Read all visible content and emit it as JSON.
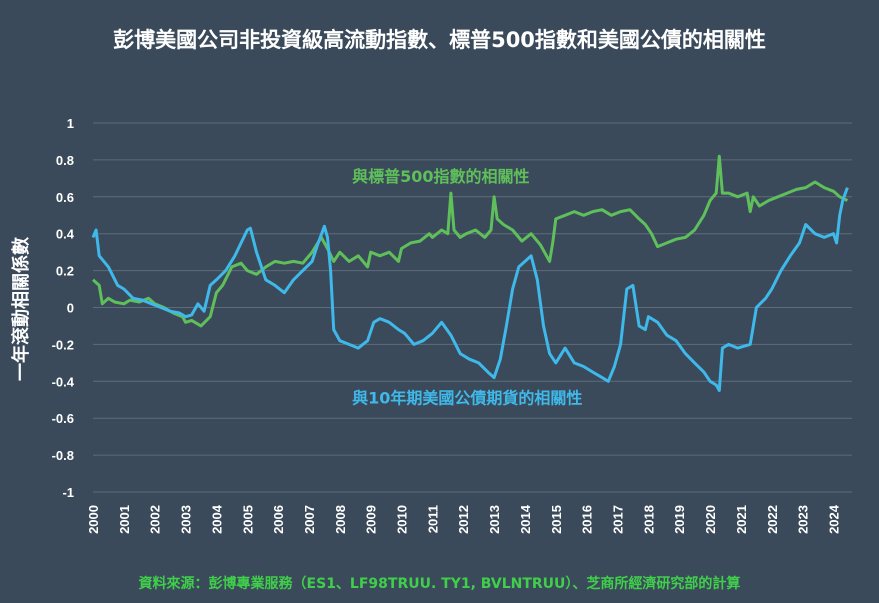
{
  "title": "彭博美國公司非投資級高流動指數、標普500指數和美國公債的相關性",
  "source": "資料來源：彭博專業服務（ES1、LF98TRUU. TY1, BVLNTRUU）、芝商所經濟研究部的計算",
  "colors": {
    "background": "#3a4a5a",
    "grid": "#5e6c7a",
    "green": "#5fbf5a",
    "blue": "#3fb8ea",
    "source": "#3fcf4a"
  },
  "chart_data": {
    "type": "line",
    "title": "彭博美國公司非投資級高流動指數、標普500指數和美國公債的相關性",
    "ylabel": "一年滾動相關係數",
    "xlabel": "",
    "ylim": [
      -1,
      1
    ],
    "yticks": [
      1,
      0.8,
      0.6,
      0.4,
      0.2,
      0,
      -0.2,
      -0.4,
      -0.6,
      -0.8,
      -1
    ],
    "ytick_labels": [
      "1",
      "0.8",
      "0.6",
      "0.4",
      "0.2",
      "0",
      "-0.2",
      "-0.4",
      "-0.6",
      "-0.8",
      "-1"
    ],
    "xlim": [
      2000,
      2024.6
    ],
    "xticks": [
      2000,
      2001,
      2002,
      2003,
      2004,
      2005,
      2006,
      2007,
      2008,
      2009,
      2010,
      2011,
      2012,
      2013,
      2014,
      2015,
      2016,
      2017,
      2018,
      2019,
      2020,
      2021,
      2022,
      2023,
      2024
    ],
    "xtick_labels": [
      "2000",
      "2001",
      "2002",
      "2003",
      "2004",
      "2005",
      "2006",
      "2007",
      "2008",
      "2009",
      "2010",
      "2011",
      "2012",
      "2013",
      "2014",
      "2015",
      "2016",
      "2017",
      "2018",
      "2019",
      "2020",
      "2021",
      "2022",
      "2023",
      "2024"
    ],
    "grid": true,
    "series": [
      {
        "name": "與標普500指數的相關性",
        "color": "#5fbf5a",
        "x": [
          2000.0,
          2000.2,
          2000.3,
          2000.5,
          2000.7,
          2001.0,
          2001.2,
          2001.5,
          2001.8,
          2002.0,
          2002.3,
          2002.6,
          2002.9,
          2003.0,
          2003.2,
          2003.5,
          2003.8,
          2004.0,
          2004.2,
          2004.5,
          2004.8,
          2005.0,
          2005.3,
          2005.6,
          2005.9,
          2006.2,
          2006.5,
          2006.8,
          2007.1,
          2007.4,
          2007.6,
          2007.8,
          2008.0,
          2008.3,
          2008.6,
          2008.9,
          2009.0,
          2009.3,
          2009.6,
          2009.9,
          2010.0,
          2010.3,
          2010.6,
          2010.9,
          2011.0,
          2011.3,
          2011.5,
          2011.6,
          2011.7,
          2011.9,
          2012.1,
          2012.4,
          2012.7,
          2012.9,
          2013.0,
          2013.1,
          2013.3,
          2013.6,
          2013.9,
          2014.2,
          2014.5,
          2014.7,
          2014.8,
          2014.9,
          2015.0,
          2015.3,
          2015.6,
          2015.9,
          2016.2,
          2016.5,
          2016.8,
          2017.1,
          2017.4,
          2017.7,
          2017.9,
          2018.1,
          2018.3,
          2018.6,
          2018.9,
          2019.2,
          2019.5,
          2019.8,
          2020.0,
          2020.2,
          2020.3,
          2020.4,
          2020.6,
          2020.9,
          2021.2,
          2021.3,
          2021.4,
          2021.6,
          2021.9,
          2022.2,
          2022.5,
          2022.8,
          2023.1,
          2023.4,
          2023.7,
          2024.0,
          2024.2,
          2024.45
        ],
        "values": [
          0.15,
          0.12,
          0.02,
          0.05,
          0.03,
          0.02,
          0.04,
          0.03,
          0.05,
          0.02,
          0.0,
          -0.03,
          -0.05,
          -0.08,
          -0.07,
          -0.1,
          -0.05,
          0.08,
          0.12,
          0.22,
          0.24,
          0.2,
          0.18,
          0.22,
          0.25,
          0.24,
          0.25,
          0.24,
          0.3,
          0.38,
          0.32,
          0.25,
          0.3,
          0.25,
          0.28,
          0.22,
          0.3,
          0.28,
          0.3,
          0.25,
          0.32,
          0.35,
          0.36,
          0.4,
          0.38,
          0.42,
          0.4,
          0.62,
          0.42,
          0.38,
          0.4,
          0.42,
          0.38,
          0.42,
          0.6,
          0.48,
          0.45,
          0.42,
          0.36,
          0.4,
          0.34,
          0.28,
          0.25,
          0.35,
          0.48,
          0.5,
          0.52,
          0.5,
          0.52,
          0.53,
          0.5,
          0.52,
          0.53,
          0.48,
          0.45,
          0.4,
          0.33,
          0.35,
          0.37,
          0.38,
          0.42,
          0.5,
          0.58,
          0.62,
          0.82,
          0.62,
          0.62,
          0.6,
          0.62,
          0.52,
          0.6,
          0.55,
          0.58,
          0.6,
          0.62,
          0.64,
          0.65,
          0.68,
          0.65,
          0.63,
          0.6,
          0.58
        ]
      },
      {
        "name": "與10年期美國公債期貨的相關性",
        "color": "#3fb8ea",
        "x": [
          2000.0,
          2000.1,
          2000.2,
          2000.5,
          2000.8,
          2001.0,
          2001.3,
          2001.6,
          2001.9,
          2002.2,
          2002.5,
          2002.8,
          2003.0,
          2003.2,
          2003.4,
          2003.6,
          2003.8,
          2004.0,
          2004.3,
          2004.6,
          2004.8,
          2005.0,
          2005.1,
          2005.3,
          2005.6,
          2005.9,
          2006.2,
          2006.5,
          2006.8,
          2007.1,
          2007.3,
          2007.5,
          2007.6,
          2007.7,
          2007.8,
          2008.0,
          2008.3,
          2008.6,
          2008.9,
          2009.1,
          2009.3,
          2009.6,
          2009.9,
          2010.1,
          2010.4,
          2010.7,
          2011.0,
          2011.3,
          2011.6,
          2011.9,
          2012.2,
          2012.5,
          2012.8,
          2013.0,
          2013.2,
          2013.4,
          2013.6,
          2013.8,
          2014.0,
          2014.2,
          2014.4,
          2014.6,
          2014.8,
          2015.0,
          2015.3,
          2015.6,
          2015.9,
          2016.2,
          2016.5,
          2016.7,
          2016.9,
          2017.1,
          2017.3,
          2017.5,
          2017.7,
          2017.9,
          2018.0,
          2018.3,
          2018.6,
          2018.9,
          2019.2,
          2019.5,
          2019.8,
          2020.0,
          2020.2,
          2020.3,
          2020.4,
          2020.6,
          2020.9,
          2021.1,
          2021.3,
          2021.5,
          2021.8,
          2022.0,
          2022.3,
          2022.6,
          2022.9,
          2023.1,
          2023.4,
          2023.7,
          2024.0,
          2024.1,
          2024.2,
          2024.3,
          2024.45
        ],
        "values": [
          0.38,
          0.42,
          0.28,
          0.22,
          0.12,
          0.1,
          0.05,
          0.04,
          0.02,
          0.0,
          -0.02,
          -0.03,
          -0.05,
          -0.04,
          0.02,
          -0.02,
          0.12,
          0.15,
          0.2,
          0.28,
          0.35,
          0.42,
          0.43,
          0.3,
          0.15,
          0.12,
          0.08,
          0.15,
          0.2,
          0.25,
          0.35,
          0.44,
          0.38,
          0.2,
          -0.12,
          -0.18,
          -0.2,
          -0.22,
          -0.18,
          -0.08,
          -0.06,
          -0.08,
          -0.12,
          -0.14,
          -0.2,
          -0.18,
          -0.14,
          -0.08,
          -0.15,
          -0.25,
          -0.28,
          -0.3,
          -0.35,
          -0.38,
          -0.28,
          -0.1,
          0.1,
          0.22,
          0.25,
          0.28,
          0.15,
          -0.1,
          -0.25,
          -0.3,
          -0.22,
          -0.3,
          -0.32,
          -0.35,
          -0.38,
          -0.4,
          -0.32,
          -0.2,
          0.1,
          0.12,
          -0.1,
          -0.12,
          -0.05,
          -0.08,
          -0.15,
          -0.18,
          -0.25,
          -0.3,
          -0.35,
          -0.4,
          -0.42,
          -0.45,
          -0.22,
          -0.2,
          -0.22,
          -0.21,
          -0.2,
          0.0,
          0.05,
          0.1,
          0.2,
          0.28,
          0.35,
          0.45,
          0.4,
          0.38,
          0.4,
          0.35,
          0.5,
          0.58,
          0.65
        ]
      }
    ],
    "annotations": [
      {
        "text": "與標普500指數的相關性",
        "x": 2008.4,
        "y": 0.68,
        "color": "#5fbf5a"
      },
      {
        "text": "與10年期美國公債期貨的相關性",
        "x": 2008.4,
        "y": -0.52,
        "color": "#3fb8ea"
      }
    ]
  }
}
